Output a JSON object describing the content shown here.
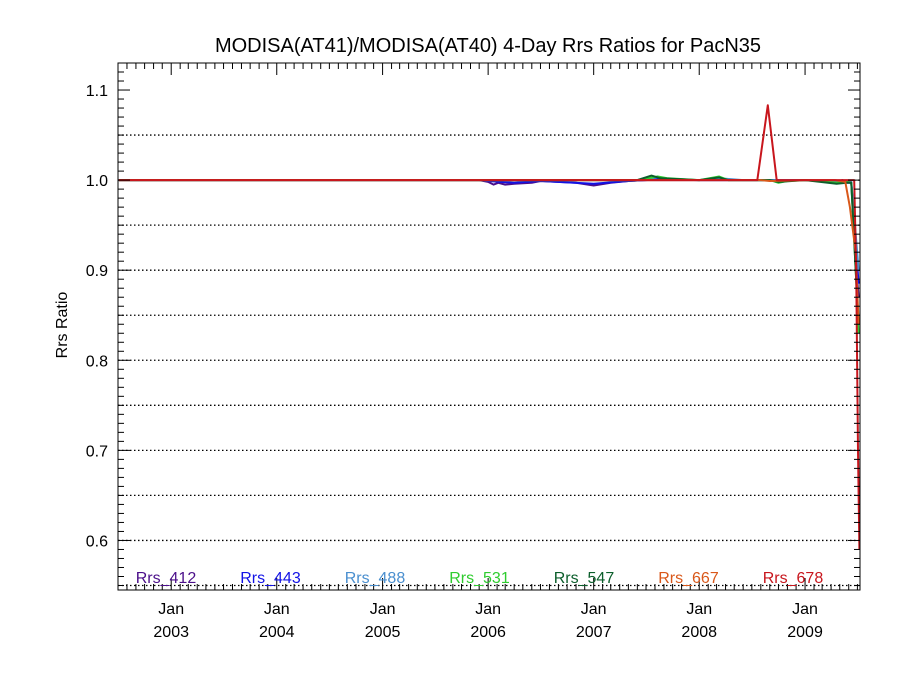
{
  "chart_data": {
    "type": "line",
    "title": "MODISA(AT41)/MODISA(AT40) 4-Day Rrs Ratios for PacN35",
    "xlabel": "",
    "ylabel": "Rrs Ratio",
    "xlim": [
      "2002-07-01",
      "2009-07-10"
    ],
    "ylim": [
      0.545,
      1.13
    ],
    "x_ticks": [
      {
        "date": "2003-01-01",
        "label_top": "Jan",
        "label_bottom": "2003"
      },
      {
        "date": "2004-01-01",
        "label_top": "Jan",
        "label_bottom": "2004"
      },
      {
        "date": "2005-01-01",
        "label_top": "Jan",
        "label_bottom": "2005"
      },
      {
        "date": "2006-01-01",
        "label_top": "Jan",
        "label_bottom": "2006"
      },
      {
        "date": "2007-01-01",
        "label_top": "Jan",
        "label_bottom": "2007"
      },
      {
        "date": "2008-01-01",
        "label_top": "Jan",
        "label_bottom": "2008"
      },
      {
        "date": "2009-01-01",
        "label_top": "Jan",
        "label_bottom": "2009"
      }
    ],
    "y_ticks": [
      0.6,
      0.7,
      0.8,
      0.9,
      1.0,
      1.1
    ],
    "y_tick_labels": [
      "0.6",
      "0.7",
      "0.8",
      "0.9",
      "1.0",
      "1.1"
    ],
    "grid_y": [
      0.55,
      0.6,
      0.65,
      0.7,
      0.75,
      0.8,
      0.85,
      0.9,
      0.95,
      1.0,
      1.05
    ],
    "grid": true,
    "legend_position": "bottom, inside plot",
    "series": [
      {
        "name": "Rrs_412",
        "color": "#4b0f8a",
        "points": [
          [
            "2002-07-04",
            1.0
          ],
          [
            "2005-12-01",
            1.0
          ],
          [
            "2006-01-01",
            0.998
          ],
          [
            "2006-01-20",
            0.995
          ],
          [
            "2006-02-05",
            0.997
          ],
          [
            "2006-03-01",
            0.995
          ],
          [
            "2006-04-01",
            0.996
          ],
          [
            "2006-06-01",
            0.997
          ],
          [
            "2006-07-01",
            0.999
          ],
          [
            "2006-09-01",
            0.998
          ],
          [
            "2006-11-01",
            0.997
          ],
          [
            "2007-01-01",
            0.994
          ],
          [
            "2007-03-01",
            0.997
          ],
          [
            "2007-05-01",
            0.999
          ],
          [
            "2007-07-01",
            1.0
          ],
          [
            "2008-01-01",
            1.0
          ],
          [
            "2008-06-01",
            1.0
          ],
          [
            "2009-01-01",
            1.0
          ],
          [
            "2009-04-20",
            0.998
          ],
          [
            "2009-05-10",
            1.0
          ],
          [
            "2009-05-25",
            0.998
          ],
          [
            "2009-06-10",
            0.997
          ],
          [
            "2009-06-25",
            0.91
          ],
          [
            "2009-07-05",
            0.87
          ]
        ]
      },
      {
        "name": "Rrs_443",
        "color": "#1212e6",
        "points": [
          [
            "2002-07-04",
            1.0
          ],
          [
            "2005-12-01",
            1.0
          ],
          [
            "2006-01-01",
            0.999
          ],
          [
            "2006-04-01",
            0.997
          ],
          [
            "2006-07-01",
            0.999
          ],
          [
            "2007-01-01",
            0.996
          ],
          [
            "2007-05-01",
            0.999
          ],
          [
            "2007-07-01",
            1.0
          ],
          [
            "2007-08-10",
            1.001
          ],
          [
            "2008-01-01",
            1.0
          ],
          [
            "2008-06-01",
            1.0
          ],
          [
            "2009-01-01",
            1.0
          ],
          [
            "2009-04-20",
            0.998
          ],
          [
            "2009-05-25",
            0.997
          ],
          [
            "2009-06-10",
            0.997
          ],
          [
            "2009-06-25",
            0.93
          ],
          [
            "2009-07-05",
            0.885
          ]
        ]
      },
      {
        "name": "Rrs_488",
        "color": "#4a8fcf",
        "points": [
          [
            "2002-07-04",
            1.0
          ],
          [
            "2007-06-01",
            1.0
          ],
          [
            "2007-08-10",
            1.003
          ],
          [
            "2007-09-15",
            1.001
          ],
          [
            "2008-01-01",
            1.0
          ],
          [
            "2008-03-10",
            1.002
          ],
          [
            "2008-06-01",
            1.0
          ],
          [
            "2009-01-01",
            1.0
          ],
          [
            "2009-05-01",
            0.999
          ],
          [
            "2009-06-10",
            0.998
          ],
          [
            "2009-06-25",
            0.94
          ],
          [
            "2009-07-05",
            0.9
          ]
        ]
      },
      {
        "name": "Rrs_531",
        "color": "#2fcc2f",
        "points": [
          [
            "2002-07-04",
            1.0
          ],
          [
            "2007-06-01",
            1.0
          ],
          [
            "2007-08-10",
            1.004
          ],
          [
            "2007-09-15",
            1.002
          ],
          [
            "2008-01-01",
            1.0
          ],
          [
            "2008-03-10",
            1.004
          ],
          [
            "2008-04-10",
            1.0
          ],
          [
            "2008-09-01",
            1.0
          ],
          [
            "2008-10-01",
            0.997
          ],
          [
            "2008-11-01",
            0.999
          ],
          [
            "2009-01-01",
            1.0
          ],
          [
            "2009-04-20",
            0.997
          ],
          [
            "2009-05-25",
            0.998
          ],
          [
            "2009-06-10",
            0.997
          ],
          [
            "2009-06-25",
            0.9
          ],
          [
            "2009-07-05",
            0.83
          ]
        ]
      },
      {
        "name": "Rrs_547",
        "color": "#0b5e2b",
        "points": [
          [
            "2002-07-04",
            1.0
          ],
          [
            "2007-06-01",
            1.0
          ],
          [
            "2007-07-20",
            1.005
          ],
          [
            "2007-08-20",
            1.002
          ],
          [
            "2008-01-01",
            1.0
          ],
          [
            "2008-03-10",
            1.003
          ],
          [
            "2008-04-10",
            1.0
          ],
          [
            "2008-09-01",
            1.0
          ],
          [
            "2008-10-01",
            0.998
          ],
          [
            "2009-01-01",
            1.0
          ],
          [
            "2009-04-20",
            0.996
          ],
          [
            "2009-05-25",
            0.997
          ],
          [
            "2009-06-10",
            0.997
          ],
          [
            "2009-06-25",
            0.9
          ],
          [
            "2009-07-05",
            0.84
          ]
        ]
      },
      {
        "name": "Rrs_667",
        "color": "#d9581a",
        "points": [
          [
            "2002-07-04",
            1.0
          ],
          [
            "2008-08-01",
            1.0
          ],
          [
            "2008-09-01",
            0.999
          ],
          [
            "2009-01-01",
            1.0
          ],
          [
            "2009-04-15",
            1.0
          ],
          [
            "2009-05-20",
            0.998
          ],
          [
            "2009-06-05",
            0.97
          ],
          [
            "2009-06-25",
            0.92
          ],
          [
            "2009-07-05",
            0.84
          ]
        ]
      },
      {
        "name": "Rrs_678",
        "color": "#c8161d",
        "points": [
          [
            "2002-07-04",
            1.0
          ],
          [
            "2008-07-20",
            1.0
          ],
          [
            "2008-08-25",
            1.083
          ],
          [
            "2008-09-25",
            1.0
          ],
          [
            "2009-06-20",
            1.0
          ],
          [
            "2009-06-27",
            0.9
          ],
          [
            "2009-07-03",
            0.7
          ],
          [
            "2009-07-08",
            0.59
          ]
        ]
      }
    ]
  }
}
